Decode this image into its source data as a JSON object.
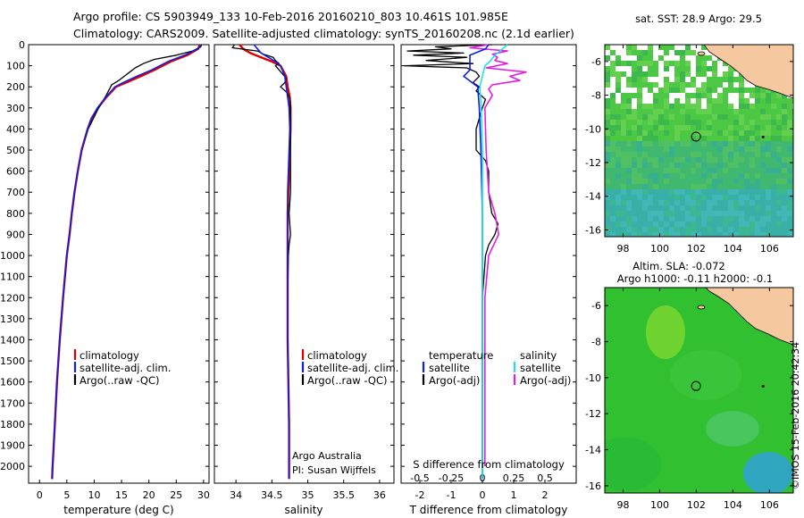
{
  "header": {
    "line1": "Argo profile: CS 5903949_133 10-Feb-2016 20160210_803 10.461S 101.985E",
    "line2": "Climatology: CARS2009. Satellite-adjusted climatology: synTS_20160208.nc (2.1d earlier)"
  },
  "colors": {
    "climatology": "#e00000",
    "satellite_adj": "#1020e0",
    "argo": "#000000",
    "salinity_sat": "#20e0e8",
    "salinity_argo": "#e020e0",
    "land": "#f5c8a0"
  },
  "depth_axis": {
    "ticks": [
      0,
      100,
      200,
      300,
      400,
      500,
      600,
      700,
      800,
      900,
      1000,
      1100,
      1200,
      1300,
      1400,
      1500,
      1600,
      1700,
      1800,
      1900,
      2000
    ]
  },
  "chart_data": [
    {
      "type": "line",
      "id": "temperature",
      "xlabel": "temperature (deg C)",
      "xlim": [
        -2,
        31
      ],
      "ylim": [
        2080,
        0
      ],
      "xticks": [
        0,
        5,
        10,
        15,
        20,
        25,
        30
      ],
      "legend": [
        "climatology",
        "satellite-adj. clim.",
        "Argo(..raw -QC)"
      ],
      "series": [
        {
          "name": "climatology",
          "depth": [
            0,
            20,
            50,
            80,
            120,
            150,
            180,
            200,
            250,
            300,
            350,
            400,
            500,
            600,
            700,
            800,
            900,
            1000,
            1200,
            1400,
            1600,
            1800,
            2000,
            2060
          ],
          "values": [
            29.3,
            29.0,
            27.0,
            24.0,
            21.0,
            18.5,
            15.8,
            14.0,
            12.2,
            10.7,
            9.5,
            8.8,
            7.7,
            7.0,
            6.4,
            5.9,
            5.5,
            5.0,
            4.3,
            3.7,
            3.2,
            2.8,
            2.4,
            2.3
          ]
        },
        {
          "name": "satellite-adj. clim.",
          "depth": [
            0,
            20,
            50,
            80,
            120,
            150,
            180,
            200,
            250,
            300,
            350,
            400,
            500,
            600,
            700,
            800,
            900,
            1000,
            1200,
            1400,
            1600,
            1800,
            2000,
            2060
          ],
          "values": [
            29.5,
            29.0,
            26.5,
            23.5,
            20.5,
            17.8,
            15.3,
            13.8,
            12.1,
            10.6,
            9.5,
            8.8,
            7.7,
            7.0,
            6.4,
            5.9,
            5.5,
            5.0,
            4.3,
            3.7,
            3.2,
            2.8,
            2.4,
            2.3
          ]
        },
        {
          "name": "Argo(..raw -QC)",
          "depth": [
            0,
            10,
            30,
            50,
            70,
            90,
            110,
            130,
            150,
            170,
            190,
            210,
            240,
            300,
            400,
            500,
            600,
            700,
            800,
            1000,
            1200,
            1400,
            1600,
            1800,
            2000
          ],
          "values": [
            29.6,
            29.5,
            28.0,
            25.0,
            21.0,
            19.0,
            17.5,
            16.5,
            15.5,
            14.5,
            13.2,
            12.8,
            12.2,
            10.8,
            8.9,
            7.7,
            7.0,
            6.4,
            5.9,
            5.0,
            4.3,
            3.7,
            3.2,
            2.8,
            2.4
          ]
        }
      ]
    },
    {
      "type": "line",
      "id": "salinity",
      "xlabel": "salinity",
      "xlim": [
        33.7,
        36.2
      ],
      "ylim": [
        2080,
        0
      ],
      "xticks": [
        34,
        34.5,
        35,
        35.5,
        36
      ],
      "legend": [
        "climatology",
        "satellite-adj. clim.",
        "Argo(..raw -QC)"
      ],
      "series": [
        {
          "name": "climatology",
          "depth": [
            0,
            20,
            40,
            60,
            80,
            100,
            150,
            200,
            250,
            300,
            400,
            500,
            600,
            700,
            800,
            1000,
            1200,
            1400,
            1600,
            1800,
            2000,
            2060
          ],
          "values": [
            34.05,
            34.1,
            34.2,
            34.35,
            34.5,
            34.62,
            34.7,
            34.72,
            34.75,
            34.76,
            34.76,
            34.75,
            34.74,
            34.73,
            34.72,
            34.72,
            34.72,
            34.72,
            34.73,
            34.74,
            34.74,
            34.74
          ]
        },
        {
          "name": "satellite-adj. clim.",
          "depth": [
            0,
            20,
            40,
            60,
            80,
            100,
            150,
            200,
            250,
            300,
            400,
            500,
            600,
            700,
            800,
            1000,
            1200,
            1400,
            1600,
            1800,
            2000,
            2060
          ],
          "values": [
            34.25,
            34.3,
            34.35,
            34.45,
            34.55,
            34.62,
            34.68,
            34.7,
            34.72,
            34.74,
            34.75,
            34.74,
            34.73,
            34.72,
            34.72,
            34.72,
            34.72,
            34.72,
            34.73,
            34.74,
            34.74,
            34.74
          ]
        },
        {
          "name": "Argo(..raw -QC)",
          "depth": [
            0,
            15,
            30,
            45,
            60,
            75,
            90,
            100,
            120,
            140,
            160,
            180,
            200,
            230,
            260,
            300,
            400,
            500,
            600,
            700,
            800,
            900,
            950,
            1000,
            1200,
            1400,
            1600,
            1800,
            2000
          ],
          "values": [
            33.98,
            33.95,
            34.3,
            34.38,
            34.52,
            34.55,
            34.6,
            34.55,
            34.6,
            34.65,
            34.7,
            34.68,
            34.62,
            34.72,
            34.75,
            34.76,
            34.76,
            34.76,
            34.76,
            34.76,
            34.74,
            34.76,
            34.74,
            34.73,
            34.72,
            34.72,
            34.73,
            34.74,
            34.74
          ]
        }
      ]
    },
    {
      "type": "line",
      "id": "difference",
      "xlabel": "T difference from climatology",
      "xlabel_top": "S difference from climatology",
      "xlim_T": [
        -2.6,
        3.0
      ],
      "xticks_T": [
        -2,
        -1,
        0,
        1,
        2
      ],
      "xlim_S": [
        -0.65,
        0.75
      ],
      "xticks_S": [
        -0.5,
        -0.25,
        0,
        0.25,
        0.5
      ],
      "xtick_labels_S": [
        "-0.5",
        "-0.25",
        "0",
        "0.25",
        "0.5"
      ],
      "ylim": [
        2080,
        0
      ],
      "legend_titles": [
        "temperature",
        "salinity"
      ],
      "legend": [
        {
          "group": "temperature",
          "label": "satellite"
        },
        {
          "group": "temperature",
          "label": "Argo(-adj)"
        },
        {
          "group": "salinity",
          "label": "satellite"
        },
        {
          "group": "salinity",
          "label": "Argo(-adj)"
        }
      ],
      "series": [
        {
          "name": "T satellite",
          "axis": "T",
          "depth": [
            0,
            20,
            50,
            80,
            120,
            150,
            200,
            300,
            500,
            800,
            1200,
            1600,
            2000,
            2060
          ],
          "values": [
            0.2,
            0.1,
            -0.4,
            -0.4,
            -0.4,
            -0.6,
            -0.15,
            -0.1,
            -0.05,
            0,
            0,
            0,
            0,
            0
          ]
        },
        {
          "name": "T Argo(-adj)",
          "axis": "T",
          "depth": [
            0,
            10,
            20,
            30,
            40,
            50,
            60,
            75,
            90,
            100,
            110,
            130,
            150,
            180,
            200,
            220,
            260,
            300,
            400,
            500,
            550,
            600,
            700,
            800,
            850,
            900,
            950,
            1000,
            1200,
            1400,
            1600,
            1800,
            2000
          ],
          "values": [
            0.3,
            -1.5,
            -1.0,
            -2.4,
            -0.6,
            -2.2,
            -0.5,
            -1.8,
            -0.3,
            -2.5,
            -0.5,
            -0.2,
            -0.1,
            -0.3,
            -0.1,
            -0.2,
            0.1,
            0,
            -0.2,
            -0.2,
            0.1,
            0.2,
            0.2,
            0.3,
            0.5,
            0.4,
            0.2,
            0.1,
            0,
            0,
            0,
            0,
            0
          ]
        },
        {
          "name": "S satellite",
          "axis": "S",
          "depth": [
            0,
            20,
            50,
            80,
            100,
            150,
            200,
            300,
            500,
            800,
            1200,
            1600,
            2000,
            2060
          ],
          "values": [
            0.2,
            0.16,
            0.1,
            0.06,
            0.02,
            0,
            -0.02,
            -0.01,
            0,
            0,
            0,
            0,
            0,
            0
          ]
        },
        {
          "name": "S Argo(-adj)",
          "axis": "S",
          "depth": [
            0,
            15,
            30,
            45,
            60,
            75,
            90,
            110,
            130,
            150,
            170,
            190,
            210,
            240,
            300,
            500,
            700,
            800,
            900,
            1000,
            1200,
            1400,
            1600,
            1800,
            2000
          ],
          "values": [
            0.05,
            -0.1,
            0.2,
            0.08,
            0.12,
            0.1,
            0.2,
            0.03,
            0.35,
            0.22,
            0.3,
            0.08,
            0.05,
            0.08,
            0.02,
            0.03,
            0.05,
            0.1,
            0.13,
            0.05,
            0.02,
            0.02,
            0.02,
            0.02,
            0.02
          ]
        }
      ]
    },
    {
      "type": "heatmap",
      "id": "sst_map",
      "title": "sat. SST: 28.9 Argo: 29.5",
      "xlim": [
        97,
        107.3
      ],
      "ylim": [
        -16.4,
        -5.0
      ],
      "xticks": [
        98,
        100,
        102,
        104,
        106
      ],
      "yticks": [
        -6,
        -8,
        -10,
        -12,
        -14,
        -16
      ],
      "profile_marker": {
        "lon": 101.985,
        "lat": -10.461
      }
    },
    {
      "type": "heatmap",
      "id": "sla_map",
      "title": "Altim. SLA: -0.072",
      "subtitle": "Argo h1000: -0.11 h2000: -0.1",
      "xlim": [
        97,
        107.3
      ],
      "ylim": [
        -16.4,
        -5.0
      ],
      "xticks": [
        98,
        100,
        102,
        104,
        106
      ],
      "yticks": [
        -6,
        -8,
        -10,
        -12,
        -14,
        -16
      ],
      "profile_marker": {
        "lon": 101.985,
        "lat": -10.461
      }
    }
  ],
  "annotations": {
    "argo_australia": "Argo Australia",
    "pi": "PI: Susan Wijffels",
    "credit": "©IMOS 15-Feb-2016 20:42:34"
  }
}
